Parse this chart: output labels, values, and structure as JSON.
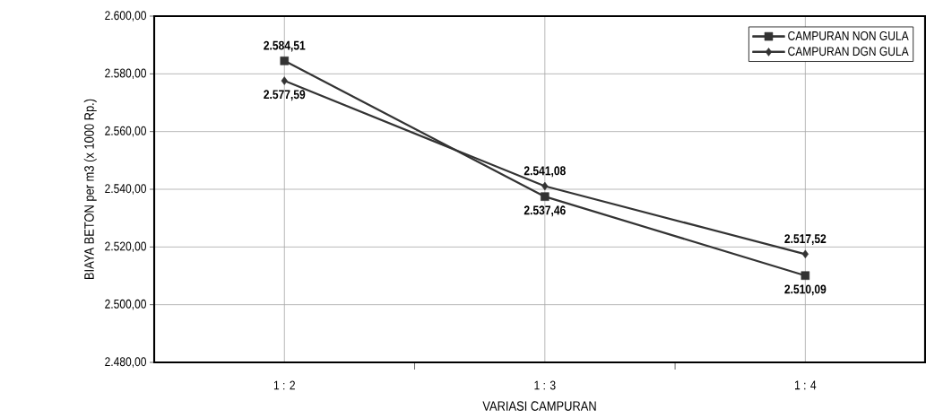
{
  "chart_data": {
    "type": "line",
    "xlabel": "VARIASI CAMPURAN",
    "ylabel": "BIAYA BETON per m3 (x 1000 Rp.)",
    "categories": [
      "1 : 2",
      "1 : 3",
      "1 : 4"
    ],
    "series": [
      {
        "name": "CAMPURAN NON GULA",
        "color": "#333333",
        "marker": "square",
        "values": [
          2584.51,
          2537.46,
          2510.09
        ],
        "value_labels": [
          "2.584,51",
          "2.537,46",
          "2.510,09"
        ]
      },
      {
        "name": "CAMPURAN DGN GULA",
        "color": "#333333",
        "marker": "diamond",
        "values": [
          2577.59,
          2541.08,
          2517.52
        ],
        "value_labels": [
          "2.577,59",
          "2.541,08",
          "2.517,52"
        ]
      }
    ],
    "ylim": [
      2480,
      2600
    ],
    "yticks": [
      {
        "value": 2480,
        "label": "2.480,00"
      },
      {
        "value": 2500,
        "label": "2.500,00"
      },
      {
        "value": 2520,
        "label": "2.520,00"
      },
      {
        "value": 2540,
        "label": "2.540,00"
      },
      {
        "value": 2560,
        "label": "2.560,00"
      },
      {
        "value": 2580,
        "label": "2.580,00"
      },
      {
        "value": 2600,
        "label": "2.600,00"
      }
    ],
    "grid": true,
    "legend": "top right"
  }
}
